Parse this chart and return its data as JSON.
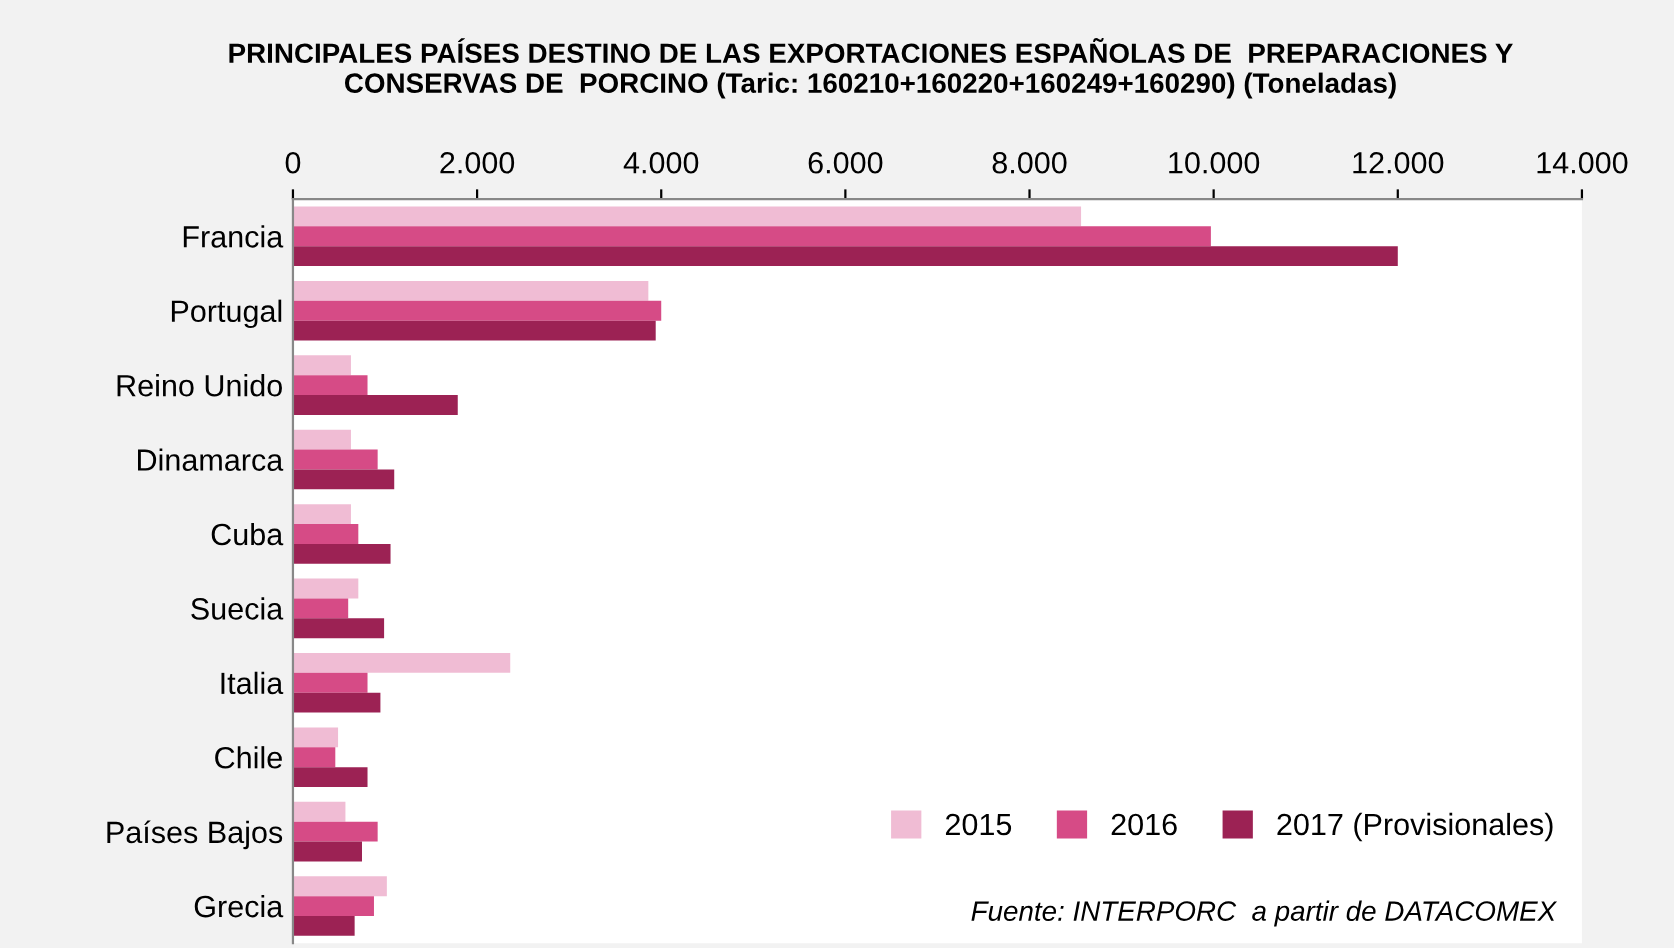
{
  "chart_data": {
    "type": "bar",
    "orientation": "horizontal",
    "title": "PRINCIPALES PAÍSES DESTINO DE LAS EXPORTACIONES ESPAÑOLAS DE  PREPARACIONES Y\nCONSERVAS DE  PORCINO (Taric: 160210+160220+160249+160290) (Toneladas)",
    "categories": [
      "Francia",
      "Portugal",
      "Reino Unido",
      "Dinamarca",
      "Cuba",
      "Suecia",
      "Italia",
      "Chile",
      "Países Bajos",
      "Grecia"
    ],
    "series": [
      {
        "name": "2015",
        "color": "#f0bcd4",
        "values": [
          8560,
          3860,
          630,
          630,
          630,
          710,
          2360,
          490,
          570,
          1020
        ]
      },
      {
        "name": "2016",
        "color": "#d64b86",
        "values": [
          9970,
          4000,
          810,
          920,
          710,
          600,
          810,
          460,
          920,
          880
        ]
      },
      {
        "name": "2017 (Provisionales)",
        "color": "#9c2254",
        "values": [
          12000,
          3940,
          1790,
          1100,
          1060,
          990,
          950,
          810,
          750,
          670
        ]
      }
    ],
    "xlim": [
      0,
      14000
    ],
    "xticks": [
      0,
      {
        "value": 2000,
        "label": "2.000"
      },
      {
        "value": 4000,
        "label": "4.000"
      },
      {
        "value": 6000,
        "label": "6.000"
      },
      {
        "value": 8000,
        "label": "8.000"
      },
      {
        "value": 10000,
        "label": "10.000"
      },
      {
        "value": 12000,
        "label": "12.000"
      },
      {
        "value": 14000,
        "label": "14.000"
      }
    ],
    "grid": false,
    "legend": "bottom right",
    "annotations": [
      "Fuente: INTERPORC  a partir de DATACOMEX"
    ]
  }
}
